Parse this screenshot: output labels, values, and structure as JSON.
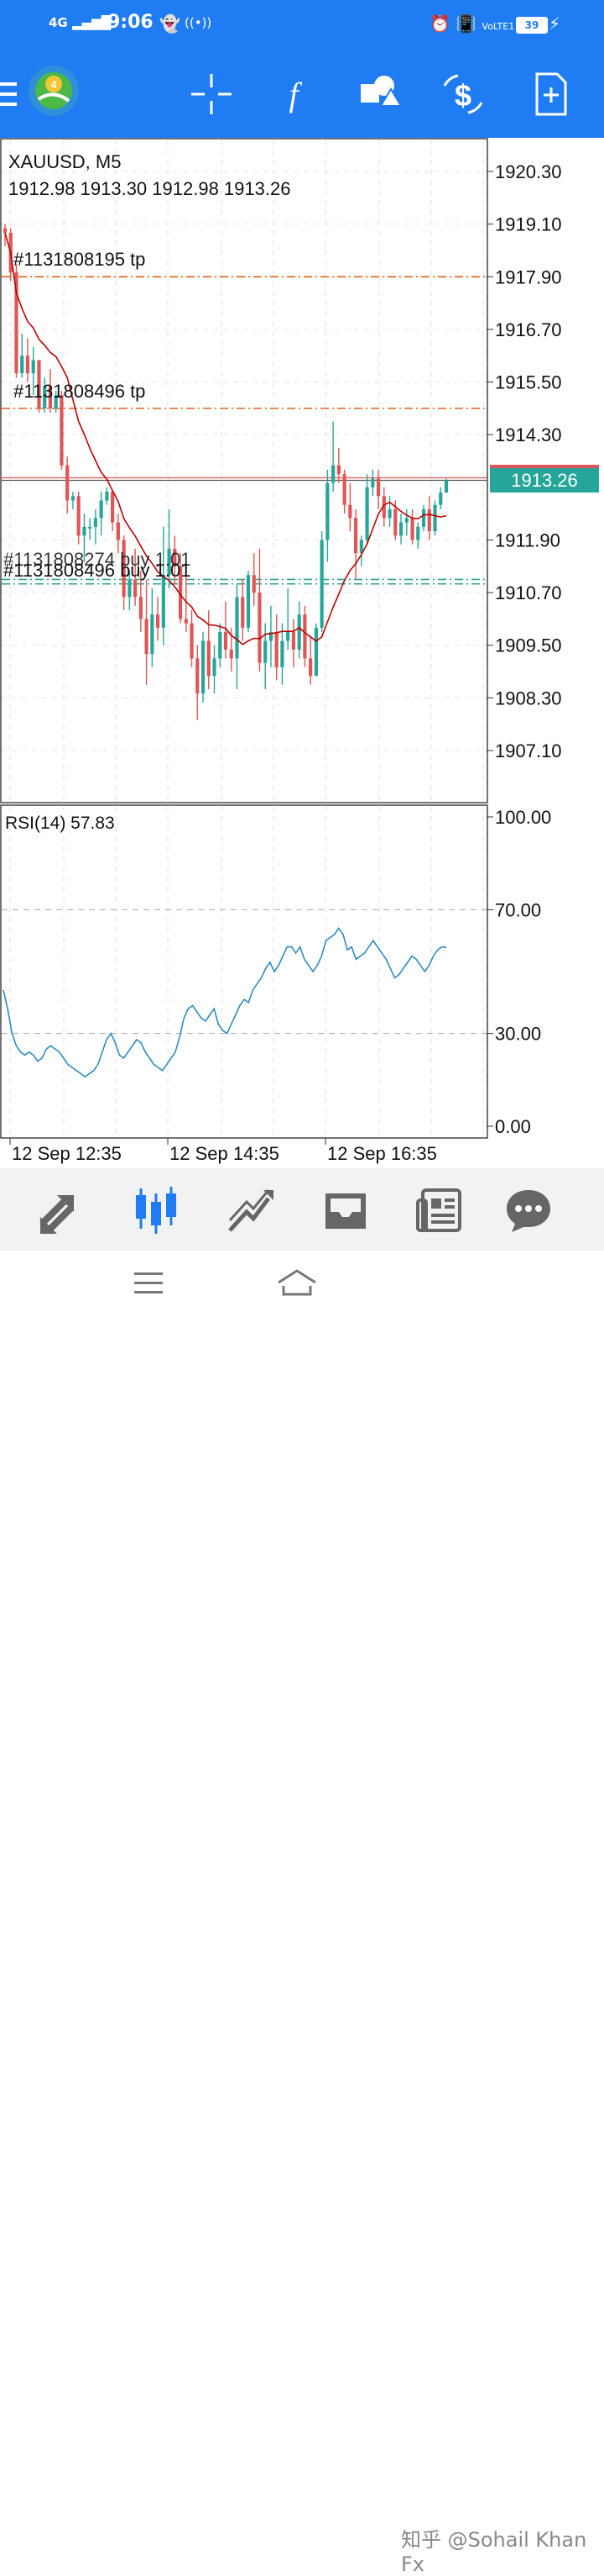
{
  "status_bar": {
    "time": "9:06",
    "network": "4G",
    "volte": "VoLTE1",
    "battery": "39"
  },
  "toolbar": {
    "icons": [
      "menu-icon",
      "mt4-logo-icon",
      "crosshair-icon",
      "indicator-icon",
      "objects-icon",
      "symbol-icon",
      "new-order-icon"
    ]
  },
  "chart": {
    "symbol": "XAUUSD, M5",
    "ohlc": "1912.98 1913.30 1912.98 1913.26",
    "current_price": "1913.26",
    "price_axis": [
      "1920.30",
      "1919.10",
      "1917.90",
      "1916.70",
      "1915.50",
      "1914.30",
      "1911.90",
      "1910.70",
      "1909.50",
      "1908.30",
      "1907.10"
    ],
    "order_labels": {
      "tp1": "#1131808195 tp",
      "tp2": "#1131808496 tp",
      "buy_overlap": "#1131808274 buy 1.01",
      "buy": "#1131808496 buy 1.01"
    },
    "rsi_label": "RSI(14) 57.83",
    "rsi_axis": [
      "100.00",
      "70.00",
      "30.00",
      "0.00"
    ],
    "time_axis": [
      "12 Sep 12:35",
      "12 Sep 14:35",
      "12 Sep 16:35"
    ],
    "colors": {
      "bull": "#26a69a",
      "bear": "#e05555",
      "ma": "#c00000",
      "rsi": "#2e8bc0",
      "tp_line": "#e0601a",
      "buy_line": "#2ea592"
    }
  },
  "chart_data": {
    "type": "candlestick",
    "symbol": "XAUUSD",
    "timeframe": "M5",
    "ylim": [
      1906.0,
      1921.0
    ],
    "last_price": 1913.26,
    "tp_levels": [
      1917.9,
      1914.9
    ],
    "buy_levels": [
      1911.0,
      1910.9
    ],
    "rsi_ylim": [
      0,
      100
    ],
    "rsi_levels": [
      70,
      30
    ],
    "candles": [
      [
        1919.0,
        1919.1,
        1918.6,
        1918.9
      ],
      [
        1918.9,
        1919.0,
        1917.8,
        1918.0
      ],
      [
        1918.0,
        1918.2,
        1915.6,
        1915.7
      ],
      [
        1915.7,
        1916.6,
        1915.6,
        1916.1
      ],
      [
        1916.1,
        1916.5,
        1915.5,
        1915.7
      ],
      [
        1915.7,
        1916.3,
        1915.2,
        1916.0
      ],
      [
        1916.0,
        1916.0,
        1914.8,
        1914.9
      ],
      [
        1914.9,
        1915.6,
        1914.8,
        1915.4
      ],
      [
        1915.4,
        1915.8,
        1914.8,
        1914.9
      ],
      [
        1914.9,
        1915.3,
        1914.8,
        1915.2
      ],
      [
        1915.2,
        1915.3,
        1913.5,
        1913.6
      ],
      [
        1913.6,
        1913.8,
        1912.5,
        1912.8
      ],
      [
        1912.8,
        1913.0,
        1912.6,
        1912.9
      ],
      [
        1912.9,
        1913.0,
        1911.8,
        1912.0
      ],
      [
        1912.0,
        1912.5,
        1911.4,
        1912.2
      ],
      [
        1912.2,
        1912.4,
        1911.9,
        1912.2
      ],
      [
        1912.2,
        1912.6,
        1911.8,
        1912.4
      ],
      [
        1912.4,
        1913.0,
        1912.0,
        1912.8
      ],
      [
        1912.8,
        1913.1,
        1912.7,
        1913.0
      ],
      [
        1913.0,
        1913.0,
        1912.1,
        1912.3
      ],
      [
        1912.3,
        1912.5,
        1911.6,
        1911.9
      ],
      [
        1911.9,
        1912.0,
        1910.3,
        1910.6
      ],
      [
        1910.6,
        1911.2,
        1910.3,
        1911.0
      ],
      [
        1911.0,
        1911.7,
        1910.4,
        1910.6
      ],
      [
        1910.6,
        1911.2,
        1909.8,
        1910.1
      ],
      [
        1910.1,
        1911.0,
        1908.6,
        1909.3
      ],
      [
        1909.3,
        1910.8,
        1909.0,
        1910.2
      ],
      [
        1910.2,
        1910.6,
        1909.6,
        1909.9
      ],
      [
        1909.9,
        1912.2,
        1909.5,
        1911.1
      ],
      [
        1911.1,
        1912.6,
        1910.8,
        1911.7
      ],
      [
        1911.7,
        1912.0,
        1910.9,
        1911.3
      ],
      [
        1911.3,
        1911.6,
        1910.0,
        1910.1
      ],
      [
        1910.1,
        1911.2,
        1909.8,
        1910.0
      ],
      [
        1910.0,
        1910.3,
        1909.0,
        1909.2
      ],
      [
        1909.2,
        1909.5,
        1907.8,
        1908.4
      ],
      [
        1908.4,
        1909.8,
        1908.2,
        1909.6
      ],
      [
        1909.6,
        1910.3,
        1908.5,
        1908.8
      ],
      [
        1908.8,
        1909.5,
        1908.4,
        1909.2
      ],
      [
        1909.2,
        1910.0,
        1909.0,
        1909.8
      ],
      [
        1909.8,
        1910.5,
        1909.2,
        1909.4
      ],
      [
        1909.4,
        1909.9,
        1908.9,
        1909.2
      ],
      [
        1909.2,
        1910.9,
        1908.5,
        1910.6
      ],
      [
        1910.6,
        1911.0,
        1909.6,
        1909.9
      ],
      [
        1909.9,
        1911.2,
        1909.8,
        1911.1
      ],
      [
        1911.1,
        1911.6,
        1910.4,
        1910.7
      ],
      [
        1910.7,
        1911.7,
        1908.9,
        1909.1
      ],
      [
        1909.1,
        1910.0,
        1908.5,
        1909.6
      ],
      [
        1909.6,
        1910.4,
        1909.0,
        1909.8
      ],
      [
        1909.8,
        1910.2,
        1908.7,
        1909.0
      ],
      [
        1909.0,
        1910.0,
        1908.6,
        1909.6
      ],
      [
        1909.6,
        1910.8,
        1909.4,
        1909.8
      ],
      [
        1909.8,
        1910.1,
        1909.0,
        1909.4
      ],
      [
        1909.4,
        1910.5,
        1909.2,
        1910.2
      ],
      [
        1910.2,
        1910.4,
        1909.0,
        1909.2
      ],
      [
        1909.2,
        1909.7,
        1908.6,
        1908.8
      ],
      [
        1908.8,
        1910.0,
        1908.8,
        1909.9
      ],
      [
        1909.9,
        1912.1,
        1909.8,
        1911.9
      ],
      [
        1911.9,
        1913.5,
        1911.4,
        1913.2
      ],
      [
        1913.2,
        1914.6,
        1913.0,
        1913.6
      ],
      [
        1913.6,
        1914.0,
        1913.2,
        1913.4
      ],
      [
        1913.4,
        1913.5,
        1912.5,
        1912.7
      ],
      [
        1912.7,
        1913.2,
        1912.1,
        1912.4
      ],
      [
        1912.4,
        1912.6,
        1911.0,
        1911.6
      ],
      [
        1911.6,
        1912.0,
        1911.3,
        1911.9
      ],
      [
        1911.9,
        1913.4,
        1911.8,
        1913.1
      ],
      [
        1913.1,
        1913.5,
        1912.9,
        1913.3
      ],
      [
        1913.3,
        1913.5,
        1912.6,
        1912.9
      ],
      [
        1912.9,
        1913.1,
        1912.2,
        1912.4
      ],
      [
        1912.4,
        1912.9,
        1912.2,
        1912.6
      ],
      [
        1912.6,
        1912.8,
        1911.9,
        1912.0
      ],
      [
        1912.0,
        1912.5,
        1911.8,
        1912.3
      ],
      [
        1912.3,
        1912.6,
        1912.0,
        1912.4
      ],
      [
        1912.4,
        1912.6,
        1911.8,
        1911.9
      ],
      [
        1911.9,
        1912.3,
        1911.7,
        1912.2
      ],
      [
        1912.2,
        1912.7,
        1912.1,
        1912.6
      ],
      [
        1912.6,
        1912.9,
        1911.9,
        1912.1
      ],
      [
        1912.1,
        1912.8,
        1912.0,
        1912.7
      ],
      [
        1912.7,
        1913.1,
        1912.6,
        1912.98
      ],
      [
        1912.98,
        1913.3,
        1912.98,
        1913.26
      ]
    ],
    "rsi_values": [
      44,
      38,
      30,
      26,
      24,
      23,
      24,
      23,
      21,
      22,
      25,
      26,
      25,
      24,
      22,
      20,
      19,
      18,
      17,
      16,
      17,
      18,
      20,
      24,
      28,
      30,
      27,
      23,
      22,
      24,
      26,
      28,
      27,
      24,
      22,
      20,
      19,
      18,
      20,
      22,
      24,
      29,
      35,
      38,
      39,
      37,
      35,
      34,
      36,
      38,
      33,
      31,
      30,
      33,
      36,
      39,
      41,
      40,
      44,
      46,
      48,
      51,
      53,
      50,
      52,
      55,
      58,
      58,
      56,
      58,
      54,
      52,
      50,
      52,
      55,
      60,
      61,
      62,
      64,
      62,
      57,
      58,
      54,
      55,
      56,
      58,
      60,
      58,
      56,
      54,
      51,
      48,
      49,
      51,
      53,
      55,
      54,
      52,
      50,
      52,
      55,
      57,
      58,
      57.83
    ]
  },
  "nav": {
    "items": [
      "quotes",
      "chart",
      "trade",
      "history",
      "news",
      "messages"
    ]
  },
  "system_bar": {
    "watermark": "知乎 @Sohail Khan Fx"
  }
}
